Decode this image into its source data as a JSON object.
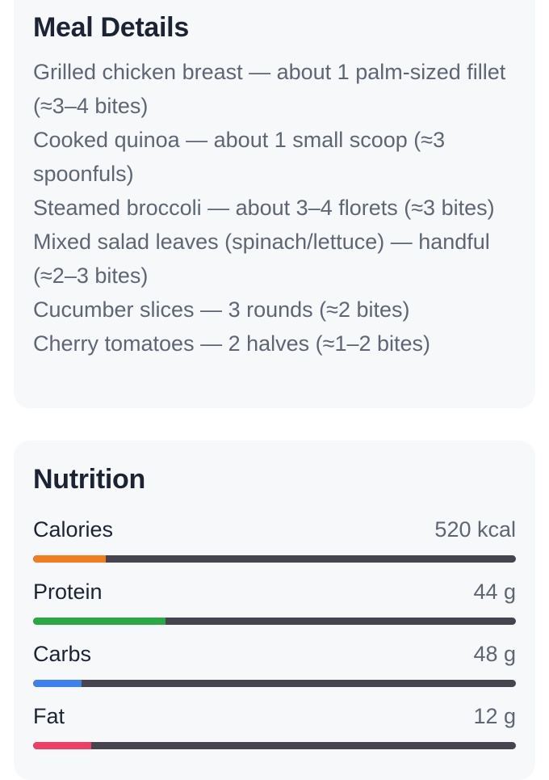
{
  "meal_details": {
    "title": "Meal Details",
    "items": [
      "Grilled chicken breast — about 1 palm-sized fillet (≈3–4 bites)",
      "Cooked quinoa — about 1 small scoop (≈3 spoonfuls)",
      "Steamed broccoli — about 3–4 florets (≈3 bites)",
      "Mixed salad leaves (spinach/lettuce) — handful (≈2–3 bites)",
      "Cucumber slices — 3 rounds (≈2 bites)",
      "Cherry tomatoes — 2 halves (≈1–2 bites)"
    ]
  },
  "nutrition": {
    "title": "Nutrition",
    "rows": [
      {
        "label": "Calories",
        "value": "520 kcal",
        "progress": 0.15,
        "color": "#f47c1c"
      },
      {
        "label": "Protein",
        "value": "44 g",
        "progress": 0.275,
        "color": "#29a844"
      },
      {
        "label": "Carbs",
        "value": "48 g",
        "progress": 0.1,
        "color": "#3b82f0"
      },
      {
        "label": "Fat",
        "value": "12 g",
        "progress": 0.12,
        "color": "#ef3f64"
      }
    ]
  }
}
